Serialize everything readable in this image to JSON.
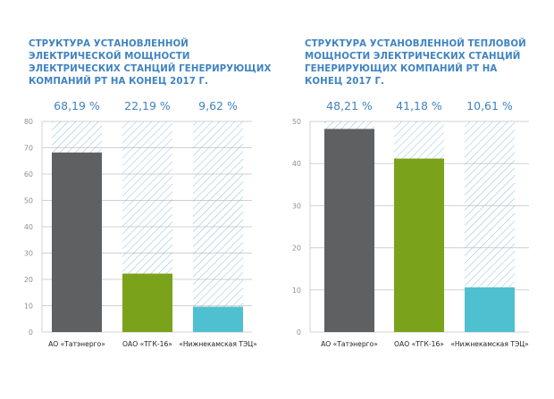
{
  "colors": {
    "title": "#3f83c2",
    "grid": "#d0d0d0",
    "hatch": "#8fbfdc",
    "tick": "#909090",
    "label": "#222222"
  },
  "chart_data": [
    {
      "type": "bar",
      "title": "СТРУКТУРА УСТАНОВЛЕННОЙ ЭЛЕКТРИЧЕСКОЙ МОЩНОСТИ ЭЛЕКТРИЧЕСКИХ СТАНЦИЙ ГЕНЕРИРУЮЩИХ КОМПАНИЙ РТ НА КОНЕЦ 2017 Г.",
      "categories": [
        "АО «Татэнерго»",
        "ОАО «ТГК-16»",
        "«Нижнекамская ТЭЦ»"
      ],
      "values": [
        68.19,
        22.19,
        9.62
      ],
      "value_labels": [
        "68,19 %",
        "22,19 %",
        "9,62 %"
      ],
      "bar_colors": [
        "#5f6062",
        "#7aa21a",
        "#4fc0cf"
      ],
      "ylim": [
        0,
        80
      ],
      "yticks": [
        "0",
        "10",
        "20",
        "30",
        "40",
        "50",
        "60",
        "70",
        "80"
      ],
      "grid": true
    },
    {
      "type": "bar",
      "title": "СТРУКТУРА УСТАНОВЛЕННОЙ ТЕПЛОВОЙ МОЩНОСТИ ЭЛЕКТРИЧЕСКИХ СТАНЦИЙ ГЕНЕРИРУЮЩИХ КОМПАНИЙ РТ НА КОНЕЦ 2017 Г.",
      "categories": [
        "АО «Татэнерго»",
        "ОАО «ТГК-16»",
        "«Нижнекамская ТЭЦ»"
      ],
      "values": [
        48.21,
        41.18,
        10.61
      ],
      "value_labels": [
        "48,21 %",
        "41,18 %",
        "10,61 %"
      ],
      "bar_colors": [
        "#5f6062",
        "#7aa21a",
        "#4fc0cf"
      ],
      "ylim": [
        0,
        50
      ],
      "yticks": [
        "0",
        "10",
        "20",
        "30",
        "40",
        "50"
      ],
      "grid": true
    }
  ]
}
